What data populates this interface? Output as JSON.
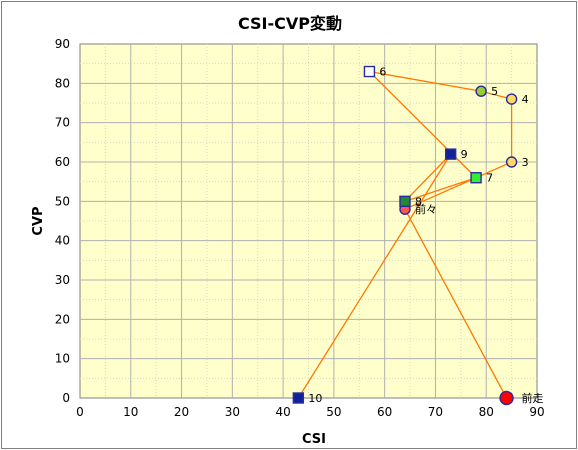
{
  "chart_data": {
    "type": "scatter",
    "title": "CSI-CVP変動",
    "xlabel": "CSI",
    "ylabel": "CVP",
    "xlim": [
      0,
      90
    ],
    "ylim": [
      0,
      90
    ],
    "xticks": [
      "0",
      "10",
      "20",
      "30",
      "40",
      "50",
      "60",
      "70",
      "80",
      "90"
    ],
    "yticks": [
      "0",
      "10",
      "20",
      "30",
      "40",
      "50",
      "60",
      "70",
      "80",
      "90"
    ],
    "grid": true,
    "plot_bg": "#ffffcc",
    "line_color": "#ff7700",
    "points": [
      {
        "label": "前走",
        "x": 84,
        "y": 0,
        "marker": "circle",
        "fill": "#ff0000"
      },
      {
        "label": "前々",
        "x": 64,
        "y": 48,
        "marker": "circle",
        "fill": "#ff5555"
      },
      {
        "label": "3",
        "x": 85,
        "y": 60,
        "marker": "circle",
        "fill": "#ffd966"
      },
      {
        "label": "4",
        "x": 85,
        "y": 76,
        "marker": "circle",
        "fill": "#ffd966"
      },
      {
        "label": "5",
        "x": 79,
        "y": 78,
        "marker": "circle",
        "fill": "#99cc33"
      },
      {
        "label": "6",
        "x": 57,
        "y": 83,
        "marker": "square",
        "fill": "#ffffff"
      },
      {
        "label": "7",
        "x": 78,
        "y": 56,
        "marker": "square",
        "fill": "#33ee33"
      },
      {
        "label": "8",
        "x": 64,
        "y": 50,
        "marker": "square",
        "fill": "#228833"
      },
      {
        "label": "9",
        "x": 73,
        "y": 62,
        "marker": "square",
        "fill": "#112299"
      },
      {
        "label": "10",
        "x": 43,
        "y": 0,
        "marker": "square",
        "fill": "#112299"
      }
    ]
  }
}
